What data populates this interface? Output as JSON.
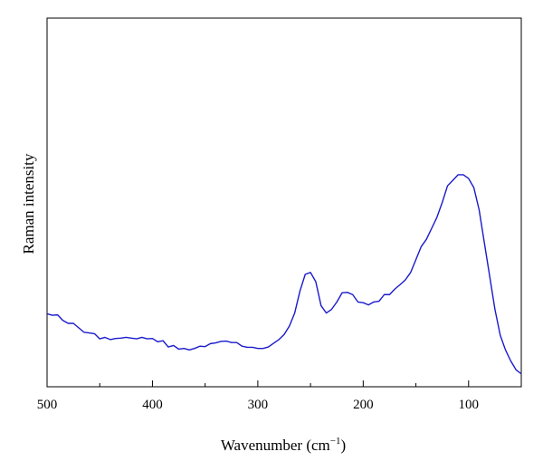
{
  "chart_data": {
    "type": "line",
    "title": "",
    "xlabel": "Wavenumber (cm",
    "xlabel_sup": "−1",
    "xlabel_close": ")",
    "ylabel": "Raman intensity",
    "x_reversed": true,
    "xlim": [
      500,
      50
    ],
    "ylim": [
      0,
      1
    ],
    "y_ticks_labeled": false,
    "grid": false,
    "x_ticks": [
      500,
      400,
      300,
      200,
      100
    ],
    "x_tick_labels": [
      "500",
      "400",
      "300",
      "200",
      "100"
    ],
    "line_color": "#1a1acc",
    "series": [
      {
        "x": [
          500,
          495,
          490,
          485,
          480,
          475,
          470,
          465,
          460,
          455,
          450,
          445,
          440,
          435,
          430,
          425,
          420,
          415,
          410,
          405,
          400,
          395,
          390,
          385,
          380,
          375,
          370,
          365,
          360,
          355,
          350,
          345,
          340,
          335,
          330,
          325,
          320,
          315,
          310,
          305,
          300,
          295,
          290,
          285,
          280,
          275,
          270,
          265,
          260,
          255,
          250,
          245,
          240,
          235,
          230,
          225,
          220,
          215,
          210,
          205,
          200,
          195,
          190,
          185,
          180,
          175,
          170,
          165,
          160,
          155,
          150,
          145,
          140,
          135,
          130,
          125,
          120,
          115,
          110,
          105,
          100,
          95,
          90,
          85,
          80,
          75,
          70,
          65,
          60,
          55,
          50
        ],
        "y": [
          0.198,
          0.194,
          0.195,
          0.18,
          0.172,
          0.172,
          0.16,
          0.148,
          0.146,
          0.144,
          0.13,
          0.134,
          0.128,
          0.131,
          0.132,
          0.134,
          0.132,
          0.13,
          0.134,
          0.13,
          0.131,
          0.122,
          0.125,
          0.108,
          0.112,
          0.102,
          0.104,
          0.1,
          0.104,
          0.11,
          0.109,
          0.117,
          0.119,
          0.123,
          0.124,
          0.12,
          0.12,
          0.11,
          0.107,
          0.107,
          0.104,
          0.104,
          0.108,
          0.118,
          0.128,
          0.142,
          0.165,
          0.2,
          0.26,
          0.305,
          0.31,
          0.285,
          0.22,
          0.2,
          0.21,
          0.23,
          0.255,
          0.256,
          0.25,
          0.23,
          0.228,
          0.222,
          0.23,
          0.232,
          0.25,
          0.25,
          0.265,
          0.277,
          0.29,
          0.31,
          0.345,
          0.38,
          0.4,
          0.43,
          0.46,
          0.5,
          0.545,
          0.56,
          0.575,
          0.575,
          0.565,
          0.54,
          0.48,
          0.39,
          0.3,
          0.21,
          0.14,
          0.1,
          0.07,
          0.046,
          0.035
        ]
      }
    ]
  }
}
